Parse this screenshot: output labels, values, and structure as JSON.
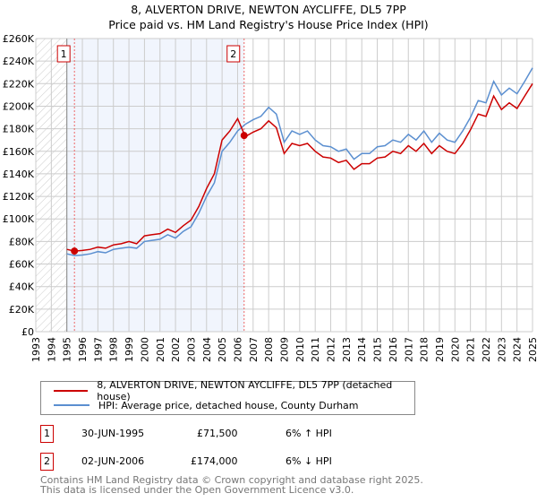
{
  "title": "8, ALVERTON DRIVE, NEWTON AYCLIFFE, DL5 7PP",
  "subtitle": "Price paid vs. HM Land Registry's House Price Index (HPI)",
  "chart_data": {
    "type": "line",
    "title": "8, ALVERTON DRIVE, NEWTON AYCLIFFE, DL5 7PP",
    "subtitle": "Price paid vs. HM Land Registry's House Price Index (HPI)",
    "xlim": [
      1993,
      2025
    ],
    "ylim": [
      0,
      260000
    ],
    "x_ticks": [
      "1993",
      "1994",
      "1995",
      "1996",
      "1997",
      "1998",
      "1999",
      "2000",
      "2001",
      "2002",
      "2003",
      "2004",
      "2005",
      "2006",
      "2007",
      "2008",
      "2009",
      "2010",
      "2011",
      "2012",
      "2013",
      "2014",
      "2015",
      "2016",
      "2017",
      "2018",
      "2019",
      "2020",
      "2021",
      "2022",
      "2023",
      "2024",
      "2025"
    ],
    "y_ticks": [
      {
        "v": 0,
        "l": "£0"
      },
      {
        "v": 20000,
        "l": "£20K"
      },
      {
        "v": 40000,
        "l": "£40K"
      },
      {
        "v": 60000,
        "l": "£60K"
      },
      {
        "v": 80000,
        "l": "£80K"
      },
      {
        "v": 100000,
        "l": "£100K"
      },
      {
        "v": 120000,
        "l": "£120K"
      },
      {
        "v": 140000,
        "l": "£140K"
      },
      {
        "v": 160000,
        "l": "£160K"
      },
      {
        "v": 180000,
        "l": "£180K"
      },
      {
        "v": 200000,
        "l": "£200K"
      },
      {
        "v": 220000,
        "l": "£220K"
      },
      {
        "v": 240000,
        "l": "£240K"
      },
      {
        "v": 260000,
        "l": "£260K"
      }
    ],
    "grid": true,
    "x": [
      1995,
      1995.5,
      1996,
      1996.5,
      1997,
      1997.5,
      1998,
      1998.5,
      1999,
      1999.5,
      2000,
      2000.5,
      2001,
      2001.5,
      2002,
      2002.5,
      2003,
      2003.5,
      2004,
      2004.5,
      2005,
      2005.5,
      2006,
      2006.5,
      2007,
      2007.5,
      2008,
      2008.5,
      2009,
      2009.5,
      2010,
      2010.5,
      2011,
      2011.5,
      2012,
      2012.5,
      2013,
      2013.5,
      2014,
      2014.5,
      2015,
      2015.5,
      2016,
      2016.5,
      2017,
      2017.5,
      2018,
      2018.5,
      2019,
      2019.5,
      2020,
      2020.5,
      2021,
      2021.5,
      2022,
      2022.5,
      2023,
      2023.5,
      2024,
      2024.5,
      2025
    ],
    "series": [
      {
        "name": "8, ALVERTON DRIVE, NEWTON AYCLIFFE, DL5 7PP (detached house)",
        "color": "#cc0000",
        "values": [
          73,
          71.5,
          72,
          73,
          75,
          74,
          77,
          78,
          80,
          78,
          85,
          86,
          87,
          91,
          88,
          94,
          99,
          111,
          127,
          140,
          170,
          178,
          189,
          173,
          177,
          180,
          187,
          181,
          158,
          167,
          165,
          167,
          160,
          155,
          154,
          150,
          152,
          144,
          149,
          149,
          154,
          155,
          160,
          158,
          165,
          160,
          167,
          158,
          165,
          160,
          158,
          167,
          179,
          193,
          191,
          209,
          197,
          203,
          198,
          209,
          220
        ]
      },
      {
        "name": "HPI: Average price, detached house, County Durham",
        "color": "#5b8fd0",
        "values": [
          69,
          67.5,
          68,
          69,
          71,
          70,
          73,
          74,
          75,
          74,
          80,
          81,
          82,
          86,
          83,
          89,
          93,
          105,
          120,
          132,
          160,
          168,
          178,
          184,
          188,
          191,
          199,
          193,
          168,
          178,
          175,
          178,
          170,
          165,
          164,
          160,
          162,
          153,
          158,
          158,
          164,
          165,
          170,
          168,
          175,
          170,
          178,
          168,
          176,
          170,
          168,
          178,
          190,
          205,
          203,
          222,
          210,
          216,
          211,
          222,
          234
        ]
      }
    ],
    "value_unit": "thousand GBP",
    "sales": [
      {
        "label": "1",
        "x": 1995.49,
        "price": 71500,
        "date": "30-JUN-1995",
        "amount": "£71,500",
        "hpi": "6% ↑ HPI"
      },
      {
        "label": "2",
        "x": 2006.42,
        "price": 174000,
        "date": "02-JUN-2006",
        "amount": "£174,000",
        "hpi": "6% ↓ HPI"
      }
    ],
    "legend_position": "below"
  },
  "footer": [
    "Contains HM Land Registry data © Crown copyright and database right 2025.",
    "This data is licensed under the Open Government Licence v3.0."
  ]
}
